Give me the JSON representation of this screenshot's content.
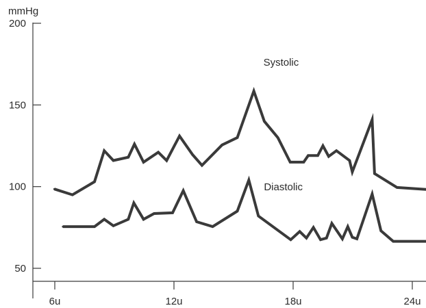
{
  "chart_data": {
    "type": "line",
    "title": "",
    "ylabel": "mmHg",
    "xlabel": "",
    "ylim": [
      50,
      200
    ],
    "xlim": [
      5.3,
      25.05
    ],
    "y_ticks": [
      50,
      100,
      150,
      200
    ],
    "x_ticks": [
      {
        "value": 6,
        "label": "6u"
      },
      {
        "value": 12,
        "label": "12u"
      },
      {
        "value": 18,
        "label": "18u"
      },
      {
        "value": 24,
        "label": "24u"
      }
    ],
    "grid": false,
    "line_color": "#3a3a3a",
    "series": [
      {
        "name": "Systolic",
        "x": [
          5.98,
          6.89,
          8.0,
          8.49,
          8.95,
          9.7,
          10.01,
          10.47,
          11.21,
          11.63,
          12.28,
          12.94,
          13.41,
          14.42,
          15.19,
          16.02,
          16.55,
          17.23,
          17.85,
          18.53,
          18.76,
          19.24,
          19.5,
          19.79,
          20.18,
          20.84,
          20.98,
          21.98,
          22.1,
          23.23,
          25.05
        ],
        "values": [
          98.5,
          95,
          103,
          122,
          116,
          118,
          126,
          115,
          121,
          116,
          131,
          119.5,
          113,
          125.5,
          130,
          158.5,
          140,
          130,
          115,
          115,
          119,
          119,
          125,
          118.5,
          122,
          116,
          109,
          141,
          108,
          99.5,
          98
        ]
      },
      {
        "name": "Diastolic",
        "x": [
          6.41,
          8.0,
          8.49,
          8.95,
          9.7,
          9.98,
          10.47,
          11.0,
          11.93,
          12.47,
          13.14,
          13.95,
          15.19,
          15.77,
          16.25,
          17.88,
          18.33,
          18.67,
          19.02,
          19.38,
          19.68,
          19.95,
          20.48,
          20.75,
          20.98,
          21.21,
          21.98,
          22.42,
          23.04,
          25.05
        ],
        "values": [
          75.5,
          75.5,
          80,
          76,
          80,
          90,
          80,
          83.5,
          84,
          97.5,
          78.5,
          75.5,
          85,
          104,
          82,
          67.5,
          72.5,
          68.5,
          75,
          67.5,
          68.5,
          77.5,
          68,
          75.5,
          69,
          68,
          95.5,
          73,
          66.5,
          66.5
        ]
      }
    ]
  }
}
